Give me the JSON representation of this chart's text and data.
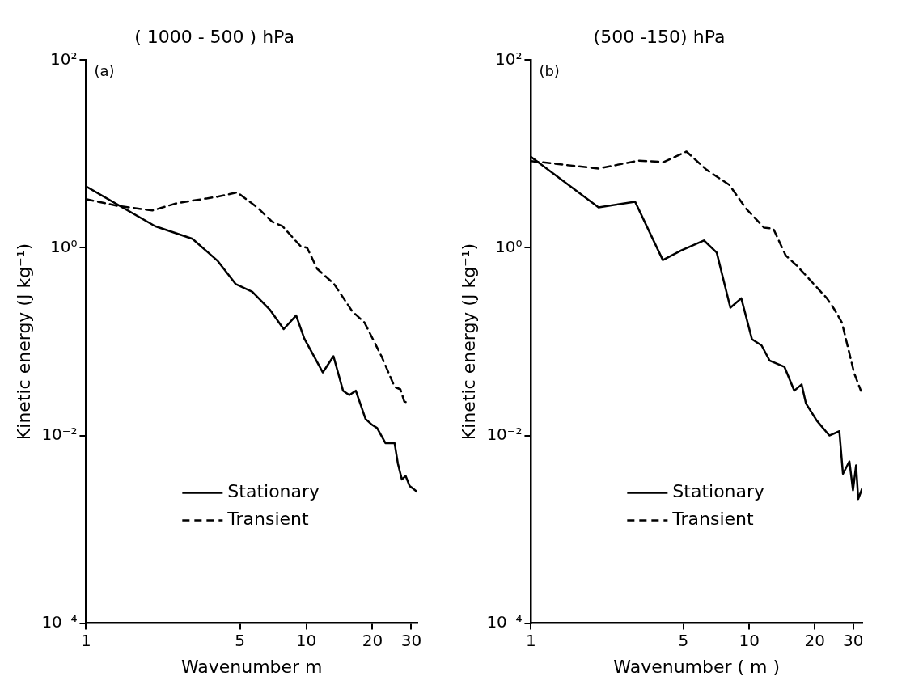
{
  "chart_data": [
    {
      "type": "line",
      "title": "( 1000 - 500 ) hPa",
      "annotations": [
        "(a)"
      ],
      "xlabel": "Wavenumber m",
      "ylabel": "Kinetic energy (J kg⁻¹)",
      "log": "xy",
      "grid": false,
      "legend": "bottom",
      "marker": "none",
      "xlim": [
        1,
        32
      ],
      "ylim": [
        0.0001,
        100
      ],
      "xticks": [
        1,
        5,
        10,
        20,
        30
      ],
      "yticks": [
        {
          "value": 0.0001,
          "label": "10⁻⁴"
        },
        {
          "value": 0.01,
          "label": "10⁻²"
        },
        {
          "value": 1,
          "label": "10⁰"
        },
        {
          "value": 100,
          "label": "10²"
        }
      ],
      "series": [
        {
          "name": "Stationary",
          "color": "#000000",
          "line_style": "solid",
          "x": [
            1,
            2.06,
            3.04,
            3.95,
            4.79,
            5.69,
            6.83,
            7.9,
            9.0,
            9.8,
            11.9,
            13.3,
            14.7,
            15.7,
            16.8,
            18.6,
            19.9,
            21,
            22.9,
            25.2,
            26.1,
            27.2,
            28.3,
            29.5,
            31.9
          ],
          "values": [
            4.5,
            1.7,
            1.25,
            0.73,
            0.41,
            0.34,
            0.22,
            0.136,
            0.19,
            0.108,
            0.047,
            0.07,
            0.03,
            0.027,
            0.03,
            0.015,
            0.013,
            0.012,
            0.0083,
            0.0083,
            0.005,
            0.0034,
            0.0037,
            0.0029,
            0.0025
          ]
        },
        {
          "name": "Transient",
          "color": "#000000",
          "line_style": "dashed",
          "x": [
            1,
            1.39,
            2.0,
            2.6,
            3.95,
            4.86,
            5.99,
            7.0,
            7.8,
            9.4,
            10.1,
            11.2,
            13.4,
            16.2,
            18.4,
            22.1,
            25.2,
            26.8,
            27.9,
            29.5
          ],
          "values": [
            3.3,
            2.8,
            2.5,
            3.0,
            3.5,
            3.9,
            2.7,
            1.9,
            1.7,
            1.05,
            1.0,
            0.6,
            0.41,
            0.21,
            0.16,
            0.068,
            0.033,
            0.031,
            0.023,
            0.022
          ]
        }
      ]
    },
    {
      "type": "line",
      "title": "(500 -150) hPa",
      "annotations": [
        "(b)"
      ],
      "xlabel": "Wavenumber ( m )",
      "ylabel": "Kinetic energy (J kg⁻¹)",
      "log": "xy",
      "grid": false,
      "legend": "bottom",
      "marker": "none",
      "xlim": [
        1,
        33
      ],
      "ylim": [
        0.0001,
        100
      ],
      "xticks": [
        1,
        5,
        10,
        20,
        30
      ],
      "yticks": [
        {
          "value": 0.0001,
          "label": "10⁻⁴"
        },
        {
          "value": 0.01,
          "label": "10⁻²"
        },
        {
          "value": 1,
          "label": "10⁰"
        },
        {
          "value": 100,
          "label": "10²"
        }
      ],
      "series": [
        {
          "name": "Stationary",
          "color": "#000000",
          "line_style": "solid",
          "x": [
            1,
            2.04,
            3.0,
            4.02,
            4.89,
            6.2,
            7.1,
            8.2,
            9.2,
            10.3,
            11.4,
            12.4,
            14.5,
            16.1,
            17.4,
            18.2,
            20.4,
            23.3,
            25.9,
            26.9,
            28.8,
            29.9,
            30.9,
            31.6,
            32.9
          ],
          "values": [
            9.3,
            2.7,
            3.1,
            0.74,
            0.94,
            1.2,
            0.89,
            0.23,
            0.29,
            0.106,
            0.091,
            0.063,
            0.054,
            0.03,
            0.035,
            0.022,
            0.0144,
            0.01,
            0.0111,
            0.0039,
            0.0053,
            0.0026,
            0.0048,
            0.0021,
            0.0027
          ]
        },
        {
          "name": "Transient",
          "color": "#000000",
          "line_style": "dashed",
          "x": [
            1,
            2.04,
            3.12,
            4.06,
            5.16,
            6.37,
            8.1,
            9.7,
            11.7,
            12.9,
            14.7,
            16.6,
            22.7,
            24.6,
            26.6,
            30.3,
            32.5
          ],
          "values": [
            8.4,
            7.0,
            8.5,
            8.2,
            10.6,
            6.8,
            4.7,
            2.6,
            1.64,
            1.6,
            0.83,
            0.64,
            0.29,
            0.22,
            0.16,
            0.046,
            0.03
          ]
        }
      ]
    }
  ]
}
